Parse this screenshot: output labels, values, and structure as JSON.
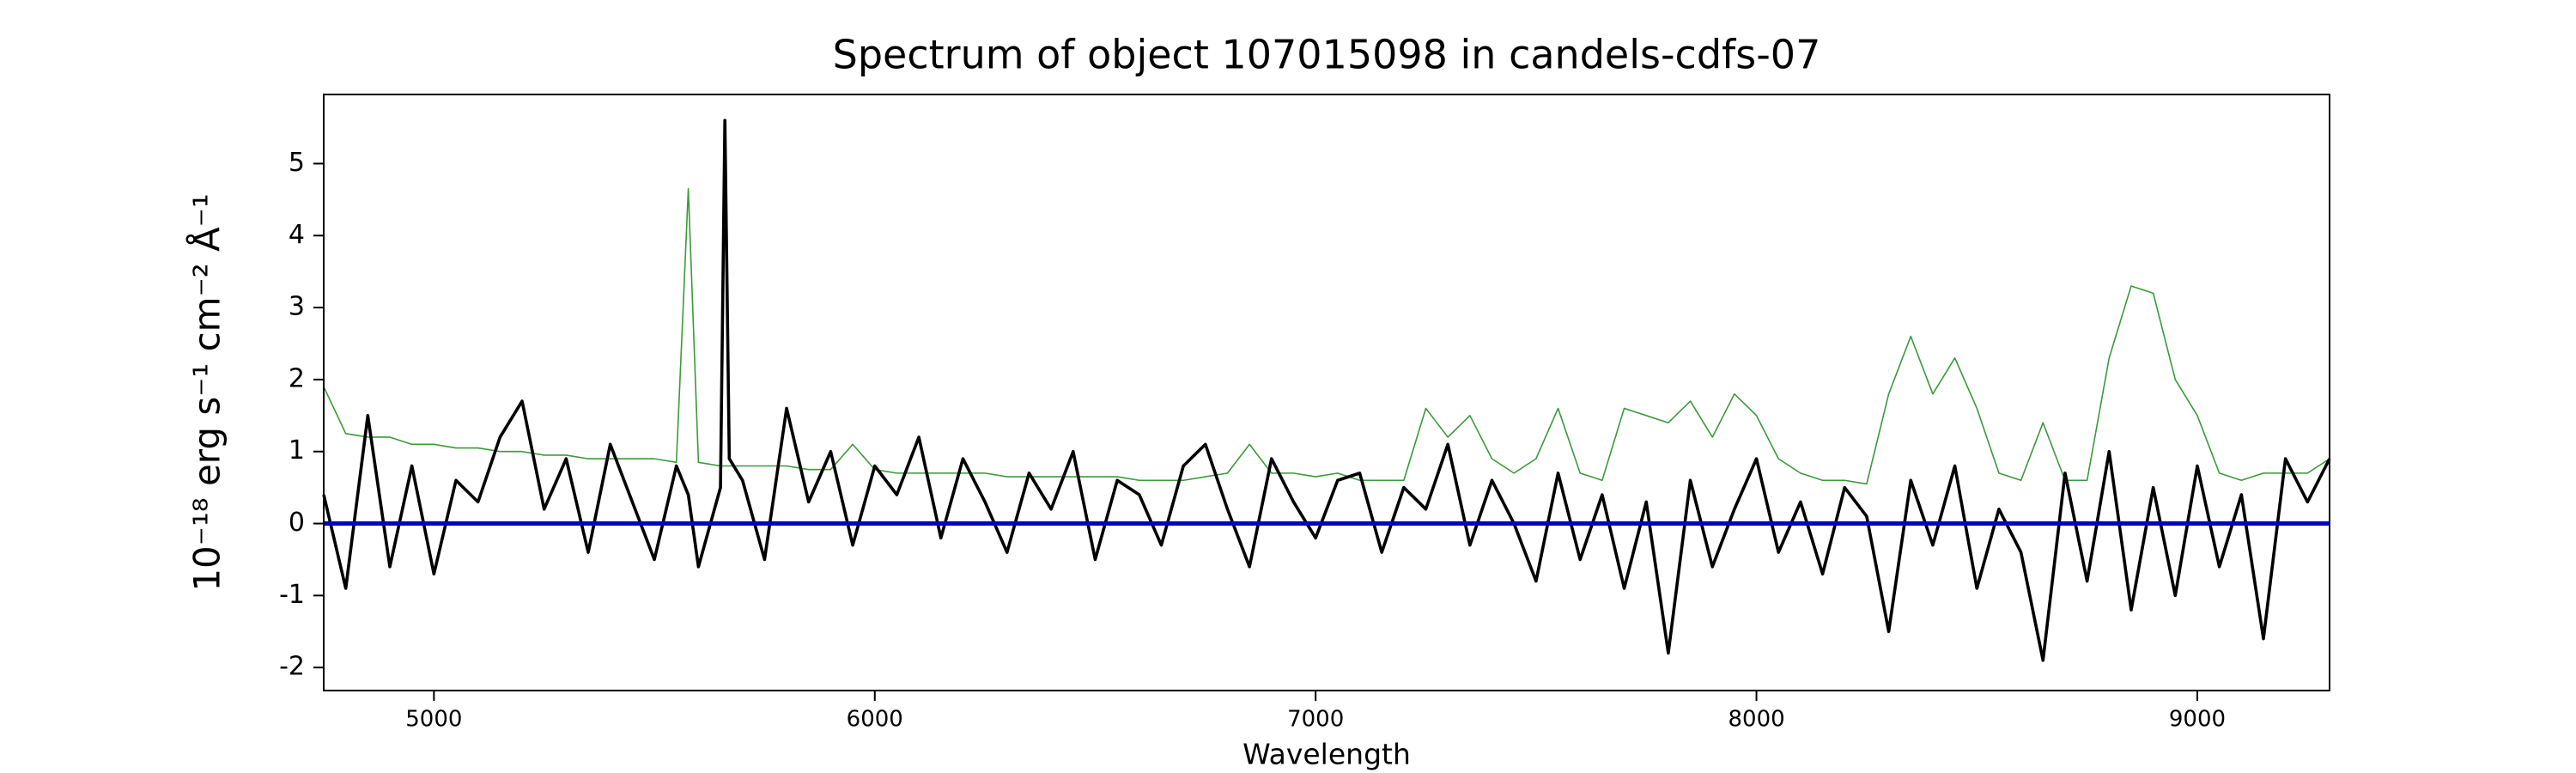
{
  "chart_data": {
    "type": "line",
    "title": "Spectrum of object 107015098 in candels-cdfs-07",
    "xlabel": "Wavelength",
    "ylabel": "10⁻¹⁸ erg s⁻¹ cm⁻² Å⁻¹",
    "x": [
      4750,
      4800,
      4850,
      4900,
      4950,
      5000,
      5050,
      5100,
      5150,
      5200,
      5250,
      5300,
      5350,
      5400,
      5450,
      5500,
      5550,
      5577,
      5600,
      5650,
      5660,
      5670,
      5700,
      5750,
      5800,
      5850,
      5900,
      5950,
      6000,
      6050,
      6100,
      6150,
      6200,
      6250,
      6300,
      6350,
      6400,
      6450,
      6500,
      6550,
      6600,
      6650,
      6700,
      6750,
      6800,
      6850,
      6900,
      6950,
      7000,
      7050,
      7100,
      7150,
      7200,
      7250,
      7300,
      7350,
      7400,
      7450,
      7500,
      7550,
      7600,
      7650,
      7700,
      7750,
      7800,
      7850,
      7900,
      7950,
      8000,
      8050,
      8100,
      8150,
      8200,
      8250,
      8300,
      8350,
      8400,
      8450,
      8500,
      8550,
      8600,
      8650,
      8700,
      8750,
      8800,
      8850,
      8900,
      8950,
      9000,
      9050,
      9100,
      9150,
      9200,
      9250,
      9300
    ],
    "series": [
      {
        "color": "#3a9a3a",
        "values": [
          1.9,
          1.25,
          1.2,
          1.2,
          1.1,
          1.1,
          1.05,
          1.05,
          1.0,
          1.0,
          0.95,
          0.95,
          0.9,
          0.9,
          0.9,
          0.9,
          0.85,
          4.65,
          0.85,
          0.8,
          0.8,
          0.8,
          0.8,
          0.8,
          0.8,
          0.75,
          0.75,
          1.1,
          0.75,
          0.7,
          0.7,
          0.7,
          0.7,
          0.7,
          0.65,
          0.65,
          0.65,
          0.65,
          0.65,
          0.65,
          0.6,
          0.6,
          0.6,
          0.65,
          0.7,
          1.1,
          0.7,
          0.7,
          0.65,
          0.7,
          0.6,
          0.6,
          0.6,
          1.6,
          1.2,
          1.5,
          0.9,
          0.7,
          0.9,
          1.6,
          0.7,
          0.6,
          1.6,
          1.5,
          1.4,
          1.7,
          1.2,
          1.8,
          1.5,
          0.9,
          0.7,
          0.6,
          0.6,
          0.55,
          1.8,
          2.6,
          1.8,
          2.3,
          1.6,
          0.7,
          0.6,
          1.4,
          0.6,
          0.6,
          2.3,
          3.3,
          3.2,
          2.0,
          1.5,
          0.7,
          0.6,
          0.7,
          0.7,
          0.7,
          0.9
        ]
      },
      {
        "color": "#000000",
        "values": [
          0.4,
          -0.9,
          1.5,
          -0.6,
          0.8,
          -0.7,
          0.6,
          0.3,
          1.2,
          1.7,
          0.2,
          0.9,
          -0.4,
          1.1,
          0.3,
          -0.5,
          0.8,
          0.4,
          -0.6,
          0.5,
          5.6,
          0.9,
          0.6,
          -0.5,
          1.6,
          0.3,
          1.0,
          -0.3,
          0.8,
          0.4,
          1.2,
          -0.2,
          0.9,
          0.3,
          -0.4,
          0.7,
          0.2,
          1.0,
          -0.5,
          0.6,
          0.4,
          -0.3,
          0.8,
          1.1,
          0.2,
          -0.6,
          0.9,
          0.3,
          -0.2,
          0.6,
          0.7,
          -0.4,
          0.5,
          0.2,
          1.1,
          -0.3,
          0.6,
          0.0,
          -0.8,
          0.7,
          -0.5,
          0.4,
          -0.9,
          0.3,
          -1.8,
          0.6,
          -0.6,
          0.2,
          0.9,
          -0.4,
          0.3,
          -0.7,
          0.5,
          0.1,
          -1.5,
          0.6,
          -0.3,
          0.8,
          -0.9,
          0.2,
          -0.4,
          -1.9,
          0.7,
          -0.8,
          1.0,
          -1.2,
          0.5,
          -1.0,
          0.8,
          -0.6,
          0.4,
          -1.6,
          0.9,
          0.3,
          0.9
        ]
      }
    ],
    "hlines": [
      {
        "value": 0,
        "color": "#0000cc"
      }
    ],
    "xlim": [
      4750,
      9300
    ],
    "ylim": [
      -2.32,
      5.96
    ],
    "xticks": [
      5000,
      6000,
      7000,
      8000,
      9000
    ],
    "yticks": [
      -2,
      -1,
      0,
      1,
      2,
      3,
      4,
      5
    ],
    "grid": false
  }
}
